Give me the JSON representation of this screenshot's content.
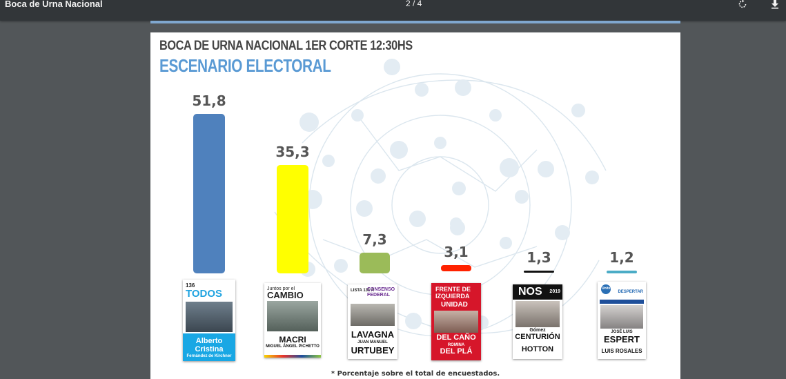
{
  "viewer": {
    "title": "Boca de Urna Nacional",
    "page_indicator": "2 / 4",
    "icons": {
      "rotate": "rotate-icon",
      "download": "download-icon"
    }
  },
  "slide": {
    "title": "BOCA DE URNA  NACIONAL 1ER CORTE 12:30HS",
    "subtitle": "ESCENARIO ELECTORAL",
    "footnote": "* Porcentaje sobre el total de encuestados."
  },
  "chart_data": {
    "type": "bar",
    "title": "BOCA DE URNA  NACIONAL 1ER CORTE 12:30HS",
    "subtitle": "ESCENARIO ELECTORAL",
    "categories": [
      "Frente de Todos",
      "Juntos por el Cambio",
      "Consenso Federal",
      "Frente de Izquierda Unidad",
      "NOS",
      "Unite / Despertar"
    ],
    "values": [
      51.8,
      35.3,
      7.3,
      3.1,
      1.3,
      1.2
    ],
    "value_labels": [
      "51,8",
      "35,3",
      "7,3",
      "3,1",
      "1,3",
      "1,2"
    ],
    "colors": [
      "#4f81bd",
      "#ffff00",
      "#9bbb59",
      "#ff2200",
      "#111111",
      "#4bacc6"
    ],
    "ylim": [
      0,
      55
    ],
    "grid": false,
    "legend": "none",
    "xlabel": "",
    "ylabel": ""
  },
  "ballots": [
    {
      "head": "136",
      "logo": "TODOS",
      "lines": [
        "Alberto",
        "Cristina"
      ],
      "small": "Fernández de Kirchner"
    },
    {
      "head": "Juntos por el",
      "logo": "CAMBIO",
      "lines": [
        "MACRI"
      ],
      "small": "MIGUEL ÁNGEL PICHETTO"
    },
    {
      "head": "LISTA 131 A",
      "logo": "CONSENSO FEDERAL",
      "lines": [
        "LAVAGNA",
        "URTUBEY"
      ],
      "small": "JUAN MANUEL"
    },
    {
      "head": "FRENTE DE IZQUIERDA",
      "logo": "UNIDAD",
      "lines": [
        "DEL CAÑO",
        "DEL PLÁ"
      ],
      "small": "ROMINA"
    },
    {
      "head": "2019",
      "logo": "NOS",
      "lines": [
        "CENTURIÓN",
        "HOTTON"
      ],
      "small": "Gómez"
    },
    {
      "head": "DESPERTAR",
      "logo": "Unite",
      "lines": [
        "ESPERT",
        "LUIS ROSALES"
      ],
      "small": "JOSÉ LUIS"
    }
  ]
}
